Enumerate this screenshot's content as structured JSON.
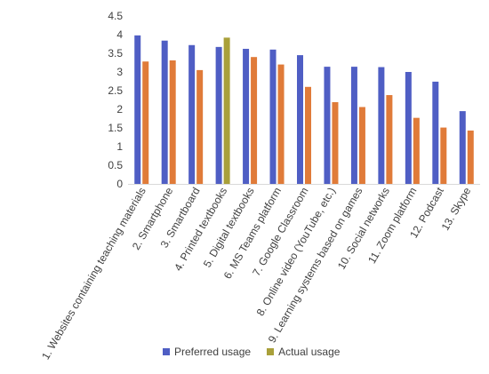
{
  "chart_data": {
    "type": "bar",
    "categories": [
      "1. Websites containing teaching materials",
      "2. Smartphone",
      "3. Smartboard",
      "4. Printed textbooks",
      "5. Digital textbooks",
      "6. MS Teams platform",
      "7. Google Classroom",
      "8. Online video (YouTube, etc.)",
      "9. Learning systems based on games",
      "10. Social networks",
      "11. Zoom platform",
      "12. Podcast",
      "13. Skype"
    ],
    "series": [
      {
        "name": "Preferred usage",
        "color": "#4f5ec4",
        "values": [
          3.98,
          3.84,
          3.72,
          3.67,
          3.62,
          3.6,
          3.45,
          3.14,
          3.14,
          3.13,
          3.0,
          2.74,
          1.95
        ]
      },
      {
        "name": "Actual usage",
        "color": "#e07b39",
        "values": [
          3.28,
          3.31,
          3.05,
          3.92,
          3.4,
          3.2,
          2.6,
          2.19,
          2.06,
          2.38,
          1.77,
          1.51,
          1.43
        ]
      }
    ],
    "highlight_color": "#a9a03a",
    "ylim": [
      0,
      4.5
    ],
    "yticks": [
      "0",
      "0.5",
      "1",
      "1.5",
      "2",
      "2.5",
      "3",
      "3.5",
      "4",
      "4.5"
    ],
    "grid": false,
    "legend_position": "bottom"
  }
}
